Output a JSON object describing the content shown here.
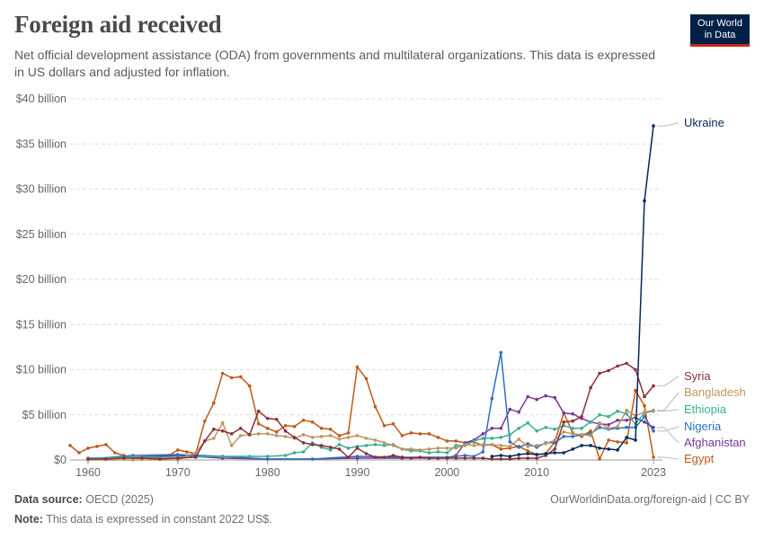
{
  "header": {
    "title": "Foreign aid received",
    "subtitle": "Net official development assistance (ODA) from governments and multilateral organizations. This data is expressed in US dollars and adjusted for inflation.",
    "logo_line1": "Our World",
    "logo_line2": "in Data"
  },
  "footer": {
    "source_label": "Data source:",
    "source_text": "OECD (2025)",
    "url": "OurWorldinData.org/foreign-aid | CC BY",
    "note_label": "Note:",
    "note_text": "This data is expressed in constant 2022 US$."
  },
  "chart_data": {
    "type": "line",
    "title": "Foreign aid received",
    "xlim": [
      1958,
      2024
    ],
    "ylim": [
      0,
      40
    ],
    "y_ticks": [
      0,
      5,
      10,
      15,
      20,
      25,
      30,
      35,
      40
    ],
    "y_tick_labels": [
      "$0",
      "$5 billion",
      "$10 billion",
      "$15 billion",
      "$20 billion",
      "$25 billion",
      "$30 billion",
      "$35 billion",
      "$40 billion"
    ],
    "x_ticks": [
      1960,
      1970,
      1980,
      1990,
      2000,
      2010,
      2023
    ],
    "x_tick_labels": [
      "1960",
      "1970",
      "1980",
      "1990",
      "2000",
      "2010",
      "2023"
    ],
    "grid": true,
    "legend": "right, labels at line ends",
    "series": [
      {
        "name": "Ukraine",
        "color": "#00295b",
        "x": [
          2005,
          2006,
          2007,
          2008,
          2009,
          2010,
          2011,
          2012,
          2013,
          2014,
          2015,
          2016,
          2017,
          2018,
          2019,
          2020,
          2021,
          2022,
          2023
        ],
        "values": [
          0.4,
          0.5,
          0.4,
          0.6,
          0.7,
          0.6,
          0.7,
          0.8,
          0.8,
          1.2,
          1.6,
          1.6,
          1.3,
          1.2,
          1.1,
          2.5,
          2.2,
          28.7,
          37.0
        ]
      },
      {
        "name": "Syria",
        "color": "#883039",
        "x": [
          1960,
          1962,
          1964,
          1966,
          1968,
          1970,
          1972,
          1973,
          1974,
          1975,
          1976,
          1977,
          1978,
          1979,
          1980,
          1981,
          1982,
          1983,
          1984,
          1985,
          1986,
          1987,
          1988,
          1989,
          1990,
          1991,
          1992,
          1993,
          1994,
          1995,
          1996,
          1997,
          1998,
          1999,
          2000,
          2001,
          2002,
          2003,
          2004,
          2005,
          2006,
          2007,
          2008,
          2009,
          2010,
          2011,
          2012,
          2013,
          2014,
          2015,
          2016,
          2017,
          2018,
          2019,
          2020,
          2021,
          2022,
          2023
        ],
        "values": [
          0.1,
          0.1,
          0.2,
          0.2,
          0.1,
          0.2,
          0.3,
          2.1,
          3.4,
          3.2,
          2.9,
          3.5,
          2.8,
          5.4,
          4.6,
          4.5,
          3.2,
          2.5,
          1.9,
          1.7,
          1.6,
          1.4,
          1.2,
          0.3,
          1.3,
          0.7,
          0.3,
          0.3,
          0.5,
          0.3,
          0.2,
          0.3,
          0.2,
          0.2,
          0.2,
          0.2,
          0.2,
          0.2,
          0.2,
          0.1,
          0.1,
          0.1,
          0.2,
          0.2,
          0.2,
          0.5,
          1.2,
          4.2,
          4.3,
          4.8,
          8.0,
          9.6,
          9.9,
          10.4,
          10.7,
          10.0,
          7.0,
          8.2
        ]
      },
      {
        "name": "Bangladesh",
        "color": "#c09462",
        "x": [
          1960,
          1965,
          1970,
          1971,
          1972,
          1973,
          1974,
          1975,
          1976,
          1977,
          1978,
          1979,
          1980,
          1981,
          1982,
          1983,
          1984,
          1985,
          1986,
          1987,
          1988,
          1989,
          1990,
          1991,
          1992,
          1993,
          1994,
          1995,
          1996,
          1997,
          1998,
          1999,
          2000,
          2001,
          2002,
          2003,
          2004,
          2005,
          2006,
          2007,
          2008,
          2009,
          2010,
          2011,
          2012,
          2013,
          2014,
          2015,
          2016,
          2017,
          2018,
          2019,
          2020,
          2021,
          2022,
          2023
        ],
        "values": [
          0,
          0,
          0,
          0.4,
          0.8,
          2.1,
          2.4,
          4.1,
          1.6,
          2.7,
          2.8,
          2.9,
          2.9,
          2.7,
          2.6,
          2.4,
          2.8,
          2.5,
          2.6,
          2.7,
          2.3,
          2.5,
          2.7,
          2.4,
          2.2,
          1.9,
          1.6,
          1.2,
          1.2,
          1.1,
          1.2,
          1.3,
          1.3,
          1.3,
          1.7,
          1.6,
          1.7,
          1.7,
          1.6,
          1.5,
          2.3,
          1.5,
          1.6,
          1.8,
          2.2,
          3.1,
          2.9,
          2.8,
          2.7,
          4.1,
          3.5,
          3.7,
          5.5,
          4.9,
          5.3,
          5.5
        ]
      },
      {
        "name": "Ethiopia",
        "color": "#3aaf92",
        "x": [
          1960,
          1965,
          1970,
          1975,
          1978,
          1980,
          1982,
          1983,
          1984,
          1985,
          1986,
          1987,
          1988,
          1989,
          1990,
          1991,
          1992,
          1993,
          1994,
          1995,
          1996,
          1997,
          1998,
          1999,
          2000,
          2001,
          2002,
          2003,
          2004,
          2005,
          2006,
          2007,
          2008,
          2009,
          2010,
          2011,
          2012,
          2013,
          2014,
          2015,
          2016,
          2017,
          2018,
          2019,
          2020,
          2021,
          2022,
          2023
        ],
        "values": [
          0.2,
          0.3,
          0.3,
          0.4,
          0.4,
          0.4,
          0.5,
          0.8,
          0.9,
          1.9,
          1.4,
          1.1,
          1.7,
          1.3,
          1.5,
          1.6,
          1.7,
          1.6,
          1.7,
          1.2,
          1.0,
          1.0,
          0.8,
          0.9,
          0.8,
          1.6,
          1.6,
          2.1,
          2.4,
          2.4,
          2.5,
          2.8,
          3.5,
          4.1,
          3.2,
          3.6,
          3.4,
          3.8,
          3.5,
          3.5,
          4.2,
          5.0,
          4.8,
          5.4,
          5.1,
          4.0,
          5.2,
          5.4
        ]
      },
      {
        "name": "Nigeria",
        "color": "#2e6fc0",
        "x": [
          1960,
          1965,
          1970,
          1975,
          1980,
          1985,
          1990,
          1995,
          2000,
          2001,
          2002,
          2003,
          2004,
          2005,
          2006,
          2007,
          2008,
          2009,
          2010,
          2011,
          2012,
          2013,
          2014,
          2015,
          2016,
          2017,
          2018,
          2019,
          2020,
          2021,
          2022,
          2023
        ],
        "values": [
          0.1,
          0.5,
          0.6,
          0.4,
          0.1,
          0.1,
          0.4,
          0.3,
          0.3,
          0.4,
          0.5,
          0.4,
          0.9,
          6.8,
          11.9,
          2.0,
          1.4,
          1.8,
          1.4,
          1.9,
          1.9,
          2.6,
          2.6,
          2.8,
          2.9,
          3.6,
          3.4,
          3.5,
          3.6,
          3.6,
          4.8,
          3.2
        ]
      },
      {
        "name": "Afghanistan",
        "color": "#7b3595",
        "x": [
          1960,
          1965,
          1970,
          1975,
          1980,
          1985,
          1990,
          1995,
          2000,
          2001,
          2002,
          2003,
          2004,
          2005,
          2006,
          2007,
          2008,
          2009,
          2010,
          2011,
          2012,
          2013,
          2014,
          2015,
          2016,
          2017,
          2018,
          2019,
          2020,
          2021,
          2022,
          2023
        ],
        "values": [
          0.2,
          0.3,
          0.5,
          0.2,
          0.1,
          0.1,
          0.2,
          0.2,
          0.2,
          0.5,
          1.9,
          2.2,
          2.9,
          3.5,
          3.5,
          5.6,
          5.3,
          7.0,
          6.7,
          7.1,
          6.9,
          5.2,
          5.1,
          4.6,
          4.2,
          4.0,
          3.9,
          4.4,
          4.4,
          4.7,
          4.2,
          3.6
        ]
      },
      {
        "name": "Egypt",
        "color": "#c05917",
        "x": [
          1958,
          1959,
          1960,
          1961,
          1962,
          1963,
          1964,
          1965,
          1966,
          1967,
          1968,
          1969,
          1970,
          1971,
          1972,
          1973,
          1974,
          1975,
          1976,
          1977,
          1978,
          1979,
          1980,
          1981,
          1982,
          1983,
          1984,
          1985,
          1986,
          1987,
          1988,
          1989,
          1990,
          1991,
          1992,
          1993,
          1994,
          1995,
          1996,
          1997,
          1998,
          1999,
          2000,
          2001,
          2002,
          2003,
          2004,
          2005,
          2006,
          2007,
          2008,
          2009,
          2010,
          2011,
          2012,
          2013,
          2014,
          2015,
          2016,
          2017,
          2018,
          2019,
          2020,
          2021,
          2022,
          2023
        ],
        "values": [
          1.6,
          0.8,
          1.3,
          1.5,
          1.7,
          0.8,
          0.5,
          0.2,
          0.2,
          0.2,
          0.2,
          0.5,
          1.1,
          0.9,
          0.7,
          4.3,
          6.3,
          9.6,
          9.1,
          9.2,
          8.2,
          4.0,
          3.5,
          3.1,
          3.8,
          3.7,
          4.4,
          4.2,
          3.5,
          3.4,
          2.7,
          3.0,
          10.3,
          9.0,
          5.9,
          3.8,
          4.0,
          2.7,
          3.0,
          2.9,
          2.9,
          2.5,
          2.1,
          2.1,
          1.9,
          2.0,
          1.6,
          1.7,
          1.2,
          1.3,
          1.5,
          1.0,
          0.6,
          0.7,
          2.0,
          5.2,
          3.0,
          2.6,
          3.2,
          0.1,
          2.2,
          2.0,
          1.9,
          7.7,
          6.0,
          0.3
        ]
      }
    ]
  }
}
